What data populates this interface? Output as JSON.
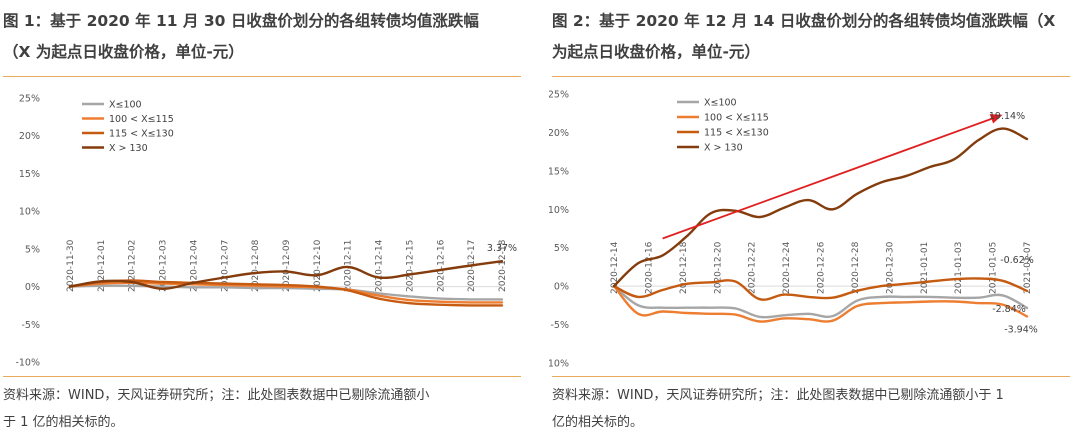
{
  "panels": [
    {
      "title_line1": "图 1：基于 2020 年 11 月 30 日收盘价划分的各组转债均值涨跌幅",
      "title_line2": "（X 为起点日收盘价格，单位-元）",
      "source_line1": "资料来源：WIND，天风证券研究所；注：此处图表数据中已剔除流通额小",
      "source_line2": "于 1 亿的相关标的。"
    },
    {
      "title_line1": "图 2：基于 2020 年 12 月 14 日收盘价划分的各组转债均值涨跌幅（X",
      "title_line2": "为起点日收盘价格，单位-元）",
      "source_line1": "资料来源：WIND，天风证券研究所；注：此处图表数据中已剔除流通额小于 1",
      "source_line2": "亿的相关标的。"
    }
  ],
  "chart_data": [
    {
      "type": "line",
      "title": "",
      "xlabel": "",
      "ylabel": "",
      "ylim": [
        -10,
        25
      ],
      "yticks": [
        -10,
        -5,
        0,
        5,
        10,
        15,
        20,
        25
      ],
      "ytick_labels": [
        "-10%",
        "-5%",
        "0%",
        "5%",
        "10%",
        "15%",
        "20%",
        "25%"
      ],
      "xtick_labels": [
        "2020-11-30",
        "2020-12-01",
        "2020-12-02",
        "2020-12-03",
        "2020-12-04",
        "2020-12-07",
        "2020-12-08",
        "2020-12-09",
        "2020-12-10",
        "2020-12-11",
        "2020-12-14",
        "2020-12-15",
        "2020-12-16",
        "2020-12-17",
        "2020-12-18"
      ],
      "grid": false,
      "legend_position": "top-left",
      "series": [
        {
          "name": "X≤100",
          "color": "#a6a6a6",
          "values": [
            0,
            0.1,
            0.1,
            0.0,
            -0.1,
            -0.1,
            -0.2,
            -0.2,
            -0.3,
            -0.4,
            -0.9,
            -1.3,
            -1.6,
            -1.7,
            -1.7
          ]
        },
        {
          "name": "100 < X≤115",
          "color": "#ed7d31",
          "values": [
            0,
            0.4,
            0.5,
            0.4,
            0.3,
            0.2,
            0.1,
            0.0,
            -0.1,
            -0.4,
            -1.2,
            -1.8,
            -2.0,
            -2.1,
            -2.1
          ]
        },
        {
          "name": "115 < X≤130",
          "color": "#c55a11",
          "values": [
            0,
            0.6,
            0.8,
            0.6,
            0.5,
            0.4,
            0.3,
            0.2,
            0.0,
            -0.5,
            -1.6,
            -2.2,
            -2.4,
            -2.5,
            -2.5
          ]
        },
        {
          "name": "X > 130",
          "color": "#843c0c",
          "values": [
            0,
            0.7,
            0.6,
            -0.3,
            0.5,
            1.2,
            1.8,
            2.0,
            1.5,
            2.6,
            1.2,
            1.6,
            2.2,
            2.8,
            3.37
          ]
        }
      ],
      "annotations": [
        {
          "text": "3.37%",
          "series": "X > 130",
          "index": 14
        }
      ]
    },
    {
      "type": "line",
      "title": "",
      "xlabel": "",
      "ylabel": "",
      "ylim": [
        -10,
        25
      ],
      "yticks": [
        -10,
        -5,
        0,
        5,
        10,
        15,
        20,
        25
      ],
      "ytick_labels": [
        "-10%",
        "-5%",
        "0%",
        "5%",
        "10%",
        "15%",
        "20%",
        "25%"
      ],
      "xtick_labels": [
        "2020-12-14",
        "2020-12-16",
        "2020-12-18",
        "2020-12-20",
        "2020-12-22",
        "2020-12-24",
        "2020-12-26",
        "2020-12-28",
        "2020-12-30",
        "2021-01-01",
        "2021-01-03",
        "2021-01-05",
        "2021-01-07"
      ],
      "grid": false,
      "legend_position": "top-left",
      "series": [
        {
          "name": "X≤100",
          "color": "#a6a6a6",
          "values": [
            0,
            -2.5,
            -2.8,
            -2.8,
            -2.8,
            -2.9,
            -4.0,
            -3.8,
            -3.6,
            -3.9,
            -1.9,
            -1.4,
            -1.4,
            -1.4,
            -1.5,
            -1.5,
            -1.2,
            -2.84
          ]
        },
        {
          "name": "100 < X≤115",
          "color": "#ed7d31",
          "values": [
            0,
            -3.6,
            -3.3,
            -3.5,
            -3.6,
            -3.7,
            -4.6,
            -4.2,
            -4.3,
            -4.5,
            -2.6,
            -2.2,
            -2.1,
            -2.0,
            -2.0,
            -2.2,
            -2.4,
            -3.94
          ]
        },
        {
          "name": "115 < X≤130",
          "color": "#c55a11",
          "values": [
            0,
            -1.4,
            -0.5,
            0.3,
            0.5,
            0.6,
            -1.7,
            -1.1,
            -1.4,
            -1.5,
            -0.6,
            0.0,
            0.3,
            0.6,
            0.9,
            1.0,
            0.7,
            -0.62
          ]
        },
        {
          "name": "X > 130",
          "color": "#843c0c",
          "values": [
            0,
            3.0,
            4.0,
            6.5,
            9.5,
            9.8,
            9.0,
            10.2,
            11.2,
            10.0,
            12.0,
            13.5,
            14.3,
            15.5,
            16.5,
            19.0,
            20.5,
            19.14
          ]
        }
      ],
      "trend_arrow": {
        "from_index": 2,
        "from_value": 6.2,
        "to_index": 16,
        "to_value": 22.3,
        "color": "#e02020"
      },
      "annotations": [
        {
          "text": "19.14%",
          "series": "X > 130",
          "index": 17
        },
        {
          "text": "-0.62%",
          "series": "115 < X≤130",
          "index": 17
        },
        {
          "text": "-2.84%",
          "series": "X≤100",
          "index": 17
        },
        {
          "text": "-3.94%",
          "series": "100 < X≤115",
          "index": 17
        }
      ]
    }
  ]
}
